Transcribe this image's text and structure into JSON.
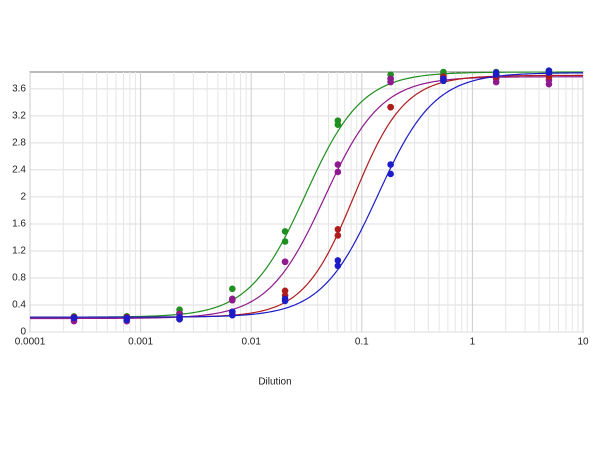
{
  "chart_data": {
    "type": "scatter",
    "x_label": "Dilution",
    "x": [
      0.00025,
      0.00075,
      0.00225,
      0.00675,
      0.02025,
      0.06075,
      0.18225,
      0.54675,
      1.64,
      4.92
    ],
    "xlim": [
      0.0001,
      10
    ],
    "xticks": [
      0.0001,
      0.001,
      0.01,
      0.1,
      1,
      10
    ],
    "x_log": true,
    "ylim": [
      0,
      3.85
    ],
    "yticks": [
      0,
      0.4,
      0.8,
      1.2,
      1.6,
      2,
      2.4,
      2.8,
      3.2,
      3.6
    ],
    "grid": true,
    "minor_grid": true,
    "series": [
      {
        "color": "#1f8f1f",
        "values": [
          [
            0.22,
            0.23
          ],
          [
            0.23,
            0.23
          ],
          [
            0.33,
            0.28
          ],
          [
            0.64,
            0.49
          ],
          [
            1.49,
            1.34
          ],
          [
            3.13,
            3.07
          ],
          [
            3.81,
            3.75
          ],
          [
            3.85,
            3.81
          ],
          [
            3.85,
            3.82
          ],
          [
            3.87,
            3.84
          ]
        ],
        "fit": {
          "bottom": 0.22,
          "top": 3.85,
          "ec50": 0.031,
          "hill": 1.7
        }
      },
      {
        "color": "#8e1a8e",
        "values": [
          [
            0.16,
            0.19
          ],
          [
            0.19,
            0.16
          ],
          [
            0.22,
            0.27
          ],
          [
            0.47,
            0.49
          ],
          [
            1.04,
            1.04
          ],
          [
            2.48,
            2.37
          ],
          [
            3.75,
            3.7
          ],
          [
            3.78,
            3.72
          ],
          [
            3.75,
            3.7
          ],
          [
            3.73,
            3.67
          ]
        ],
        "fit": {
          "bottom": 0.2,
          "top": 3.78,
          "ec50": 0.046,
          "hill": 1.7
        }
      },
      {
        "color": "#b01c1c",
        "values": [
          [
            0.22,
            0.22
          ],
          [
            0.22,
            0.22
          ],
          [
            0.22,
            0.19
          ],
          [
            0.3,
            0.25
          ],
          [
            0.61,
            0.54
          ],
          [
            1.52,
            1.43
          ],
          [
            3.33,
            3.33
          ],
          [
            3.78,
            3.75
          ],
          [
            3.82,
            3.78
          ],
          [
            3.82,
            3.78
          ]
        ],
        "fit": {
          "bottom": 0.22,
          "top": 3.8,
          "ec50": 0.085,
          "hill": 1.9
        }
      },
      {
        "color": "#1c1cc8",
        "values": [
          [
            0.21,
            0.21
          ],
          [
            0.21,
            0.18
          ],
          [
            0.19,
            0.22
          ],
          [
            0.25,
            0.3
          ],
          [
            0.49,
            0.46
          ],
          [
            1.06,
            0.98
          ],
          [
            2.48,
            2.34
          ],
          [
            3.75,
            3.72
          ],
          [
            3.84,
            3.81
          ],
          [
            3.87,
            3.84
          ]
        ],
        "fit": {
          "bottom": 0.22,
          "top": 3.84,
          "ec50": 0.14,
          "hill": 1.7
        }
      }
    ]
  }
}
